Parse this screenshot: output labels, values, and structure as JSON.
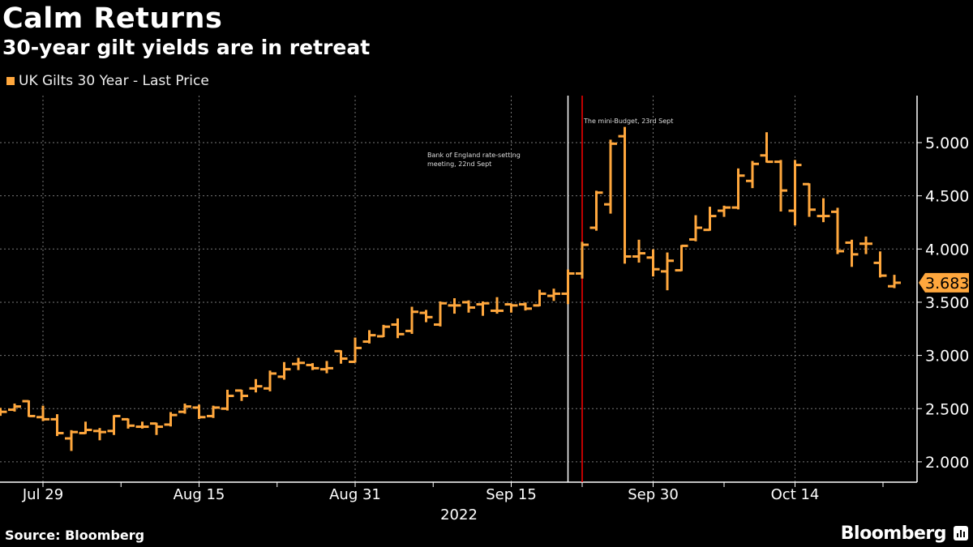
{
  "header": {
    "title": "Calm Returns",
    "subtitle": "30-year gilt yields are in retreat"
  },
  "footer": {
    "source": "Source: Bloomberg",
    "brand": "Bloomberg"
  },
  "colors": {
    "series": "#ffa73d",
    "background": "#000000",
    "annotation_red": "#ff0000",
    "annotation_white": "#ffffff",
    "last_price_label": "#ffa73d"
  },
  "chart_data": {
    "type": "ohlc",
    "title": "Calm Returns",
    "subtitle": "30-year gilt yields are in retreat",
    "legend": [
      {
        "name": "UK Gilts 30 Year - Last Price",
        "color": "#ffa73d"
      }
    ],
    "legend_placement": "top-left",
    "ylim": [
      1.85,
      5.4
    ],
    "yaxis_side": "right",
    "yticks": [
      2.0,
      2.5,
      3.0,
      3.5,
      4.0,
      4.5,
      5.0
    ],
    "ytick_labels": [
      "2.000",
      "2.500",
      "3.000",
      "3.500",
      "4.000",
      "4.500",
      "5.000"
    ],
    "xticks": [
      {
        "date": "2022-07-29",
        "label": "Jul 29"
      },
      {
        "date": "2022-08-15",
        "label": "Aug 15"
      },
      {
        "date": "2022-08-31",
        "label": "Aug 31"
      },
      {
        "date": "2022-09-15",
        "label": "Sep 15"
      },
      {
        "date": "2022-09-30",
        "label": "Sep 30"
      },
      {
        "date": "2022-10-14",
        "label": "Oct 14"
      }
    ],
    "x_year_label": "2022",
    "grid": true,
    "last_price": "3.683",
    "annotations": [
      {
        "date": "2022-09-22",
        "text": [
          "Bank of England rate-setting",
          "meeting, 22nd Sept"
        ],
        "line_color": "#ffffff"
      },
      {
        "date": "2022-09-23",
        "text": [
          "The mini-Budget, 23rd Sept"
        ],
        "line_color": "#ff0000"
      }
    ],
    "series": [
      {
        "name": "UK Gilts 30 Year - Last Price",
        "columns": [
          "date",
          "open",
          "high",
          "low",
          "close"
        ],
        "values": [
          [
            "2022-07-26",
            2.47,
            2.5,
            2.44,
            2.47
          ],
          [
            "2022-07-27",
            2.49,
            2.54,
            2.48,
            2.52
          ],
          [
            "2022-07-28",
            2.57,
            2.57,
            2.43,
            2.43
          ],
          [
            "2022-07-29",
            2.42,
            2.52,
            2.39,
            2.4
          ],
          [
            "2022-08-01",
            2.4,
            2.44,
            2.25,
            2.27
          ],
          [
            "2022-08-02",
            2.22,
            2.29,
            2.11,
            2.28
          ],
          [
            "2022-08-03",
            2.27,
            2.37,
            2.27,
            2.3
          ],
          [
            "2022-08-04",
            2.29,
            2.31,
            2.21,
            2.28
          ],
          [
            "2022-08-05",
            2.29,
            2.43,
            2.26,
            2.43
          ],
          [
            "2022-08-08",
            2.4,
            2.4,
            2.32,
            2.34
          ],
          [
            "2022-08-09",
            2.33,
            2.37,
            2.32,
            2.33
          ],
          [
            "2022-08-10",
            2.36,
            2.36,
            2.26,
            2.33
          ],
          [
            "2022-08-11",
            2.35,
            2.46,
            2.34,
            2.44
          ],
          [
            "2022-08-12",
            2.47,
            2.54,
            2.46,
            2.52
          ],
          [
            "2022-08-15",
            2.51,
            2.53,
            2.41,
            2.42
          ],
          [
            "2022-08-16",
            2.43,
            2.52,
            2.42,
            2.51
          ],
          [
            "2022-08-17",
            2.5,
            2.67,
            2.49,
            2.62
          ],
          [
            "2022-08-18",
            2.67,
            2.67,
            2.58,
            2.62
          ],
          [
            "2022-08-19",
            2.69,
            2.77,
            2.66,
            2.71
          ],
          [
            "2022-08-22",
            2.69,
            2.85,
            2.67,
            2.83
          ],
          [
            "2022-08-23",
            2.8,
            2.93,
            2.78,
            2.87
          ],
          [
            "2022-08-24",
            2.92,
            2.97,
            2.87,
            2.93
          ],
          [
            "2022-08-25",
            2.91,
            2.92,
            2.87,
            2.88
          ],
          [
            "2022-08-26",
            2.87,
            2.94,
            2.84,
            2.88
          ],
          [
            "2022-08-30",
            3.04,
            3.04,
            2.93,
            2.97
          ],
          [
            "2022-08-31",
            2.94,
            3.16,
            2.94,
            3.07
          ],
          [
            "2022-09-01",
            3.13,
            3.23,
            3.12,
            3.19
          ],
          [
            "2022-09-02",
            3.18,
            3.28,
            3.18,
            3.27
          ],
          [
            "2022-09-05",
            3.29,
            3.34,
            3.17,
            3.2
          ],
          [
            "2022-09-06",
            3.23,
            3.45,
            3.21,
            3.41
          ],
          [
            "2022-09-07",
            3.4,
            3.42,
            3.32,
            3.36
          ],
          [
            "2022-09-08",
            3.29,
            3.5,
            3.28,
            3.49
          ],
          [
            "2022-09-09",
            3.47,
            3.53,
            3.4,
            3.47
          ],
          [
            "2022-09-12",
            3.5,
            3.51,
            3.41,
            3.45
          ],
          [
            "2022-09-13",
            3.48,
            3.5,
            3.38,
            3.49
          ],
          [
            "2022-09-14",
            3.42,
            3.54,
            3.4,
            3.42
          ],
          [
            "2022-09-15",
            3.48,
            3.48,
            3.41,
            3.47
          ],
          [
            "2022-09-16",
            3.48,
            3.49,
            3.43,
            3.44
          ],
          [
            "2022-09-20",
            3.47,
            3.61,
            3.47,
            3.58
          ],
          [
            "2022-09-21",
            3.56,
            3.62,
            3.52,
            3.58
          ],
          [
            "2022-09-22",
            3.58,
            3.8,
            3.49,
            3.77
          ],
          [
            "2022-09-23",
            3.77,
            4.06,
            3.73,
            4.04
          ],
          [
            "2022-09-26",
            4.2,
            4.54,
            4.18,
            4.53
          ],
          [
            "2022-09-27",
            4.42,
            5.02,
            4.34,
            4.99
          ],
          [
            "2022-09-28",
            5.06,
            5.14,
            3.87,
            3.93
          ],
          [
            "2022-09-29",
            3.93,
            4.08,
            3.88,
            3.96
          ],
          [
            "2022-09-30",
            3.92,
            3.99,
            3.75,
            3.81
          ],
          [
            "2022-10-03",
            3.79,
            3.96,
            3.62,
            3.89
          ],
          [
            "2022-10-04",
            3.8,
            4.03,
            3.8,
            4.03
          ],
          [
            "2022-10-05",
            4.09,
            4.31,
            4.08,
            4.2
          ],
          [
            "2022-10-06",
            4.18,
            4.39,
            4.18,
            4.31
          ],
          [
            "2022-10-07",
            4.36,
            4.4,
            4.31,
            4.39
          ],
          [
            "2022-10-10",
            4.39,
            4.75,
            4.38,
            4.69
          ],
          [
            "2022-10-11",
            4.64,
            4.82,
            4.58,
            4.8
          ],
          [
            "2022-10-12",
            4.88,
            5.09,
            4.82,
            4.82
          ],
          [
            "2022-10-13",
            4.82,
            4.83,
            4.36,
            4.55
          ],
          [
            "2022-10-14",
            4.36,
            4.83,
            4.23,
            4.79
          ],
          [
            "2022-10-17",
            4.61,
            4.61,
            4.31,
            4.37
          ],
          [
            "2022-10-18",
            4.31,
            4.47,
            4.26,
            4.31
          ],
          [
            "2022-10-19",
            4.35,
            4.38,
            3.96,
            3.98
          ],
          [
            "2022-10-20",
            4.06,
            4.08,
            3.84,
            3.95
          ],
          [
            "2022-10-21",
            4.05,
            4.11,
            3.96,
            4.05
          ],
          [
            "2022-10-24",
            3.87,
            3.97,
            3.74,
            3.75
          ],
          [
            "2022-10-25",
            3.65,
            3.75,
            3.64,
            3.683
          ]
        ]
      }
    ]
  }
}
